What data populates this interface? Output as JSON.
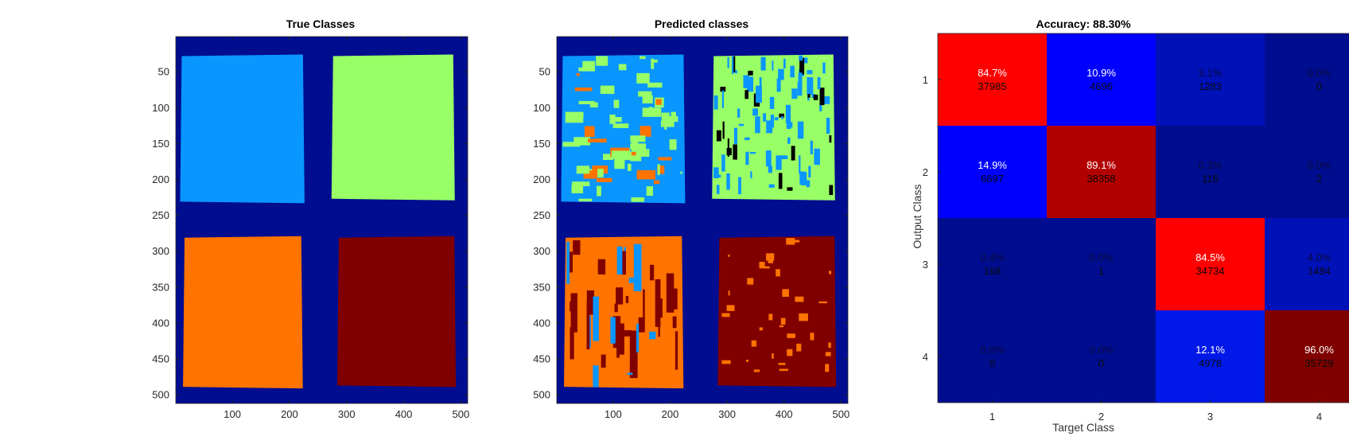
{
  "colors": {
    "background": "#000d8f",
    "class1": "#0a96ff",
    "class2": "#99ff66",
    "class3": "#ff7300",
    "class4": "#800000",
    "cm_high": "#ff0000",
    "cm_mid_high": "#b20000",
    "cm_diag_dark": "#800000",
    "cm_low_bright": "#0000ff",
    "cm_low_mid": "#0018e8",
    "cm_low_dim": "#0011b8",
    "cm_zero": "#000d8f"
  },
  "chart_data": [
    {
      "type": "heatmap",
      "title": "True Classes",
      "xticks": [
        "100",
        "200",
        "300",
        "400",
        "500"
      ],
      "yticks": [
        "50",
        "100",
        "150",
        "200",
        "250",
        "300",
        "350",
        "400",
        "450",
        "500"
      ],
      "xlim": [
        1,
        512
      ],
      "ylim": [
        1,
        512
      ],
      "tick_values_x": [
        100,
        200,
        300,
        400,
        500
      ],
      "tick_values_y": [
        50,
        100,
        150,
        200,
        250,
        300,
        350,
        400,
        450,
        500
      ],
      "regions": [
        {
          "class": 1,
          "x": [
            10,
            225
          ],
          "y": [
            27,
            232
          ]
        },
        {
          "class": 2,
          "x": [
            275,
            488
          ],
          "y": [
            27,
            228
          ]
        },
        {
          "class": 3,
          "x": [
            15,
            222
          ],
          "y": [
            280,
            490
          ]
        },
        {
          "class": 4,
          "x": [
            285,
            490
          ],
          "y": [
            280,
            488
          ]
        }
      ]
    },
    {
      "type": "heatmap",
      "title": "Predicted classes",
      "xticks": [
        "100",
        "200",
        "300",
        "400",
        "500"
      ],
      "yticks": [
        "50",
        "100",
        "150",
        "200",
        "250",
        "300",
        "350",
        "400",
        "450",
        "500"
      ],
      "xlim": [
        1,
        512
      ],
      "ylim": [
        1,
        512
      ],
      "tick_values_x": [
        100,
        200,
        300,
        400,
        500
      ],
      "tick_values_y": [
        50,
        100,
        150,
        200,
        250,
        300,
        350,
        400,
        450,
        500
      ],
      "regions": [
        {
          "class": 1,
          "x": [
            10,
            225
          ],
          "y": [
            27,
            232
          ]
        },
        {
          "class": 2,
          "x": [
            275,
            488
          ],
          "y": [
            27,
            228
          ]
        },
        {
          "class": 3,
          "x": [
            15,
            222
          ],
          "y": [
            280,
            490
          ]
        },
        {
          "class": 4,
          "x": [
            285,
            490
          ],
          "y": [
            280,
            488
          ]
        }
      ]
    },
    {
      "type": "heatmap",
      "title": "Accuracy: 88.30%",
      "xlabel": "Target Class",
      "ylabel": "Output Class",
      "xticks": [
        "1",
        "2",
        "3",
        "4"
      ],
      "yticks": [
        "1",
        "2",
        "3",
        "4"
      ],
      "cells": [
        [
          {
            "pct": "84.7%",
            "count": "37985",
            "color": "#ff0000"
          },
          {
            "pct": "10.9%",
            "count": "4696",
            "color": "#0000ff"
          },
          {
            "pct": "3.1%",
            "count": "1283",
            "color": "#0011b8"
          },
          {
            "pct": "0.0%",
            "count": "0",
            "color": "#000d8f"
          }
        ],
        [
          {
            "pct": "14.9%",
            "count": "6697",
            "color": "#0000ff"
          },
          {
            "pct": "89.1%",
            "count": "38358",
            "color": "#b20000"
          },
          {
            "pct": "0.3%",
            "count": "116",
            "color": "#000d8f"
          },
          {
            "pct": "0.0%",
            "count": "2",
            "color": "#000d8f"
          }
        ],
        [
          {
            "pct": "0.4%",
            "count": "168",
            "color": "#000d8f"
          },
          {
            "pct": "0.0%",
            "count": "1",
            "color": "#000d8f"
          },
          {
            "pct": "84.5%",
            "count": "34734",
            "color": "#ff0000"
          },
          {
            "pct": "4.0%",
            "count": "1484",
            "color": "#0011b8"
          }
        ],
        [
          {
            "pct": "0.0%",
            "count": "0",
            "color": "#000d8f"
          },
          {
            "pct": "0.0%",
            "count": "0",
            "color": "#000d8f"
          },
          {
            "pct": "12.1%",
            "count": "4978",
            "color": "#0018e8"
          },
          {
            "pct": "96.0%",
            "count": "35729",
            "color": "#800000"
          }
        ]
      ]
    }
  ]
}
